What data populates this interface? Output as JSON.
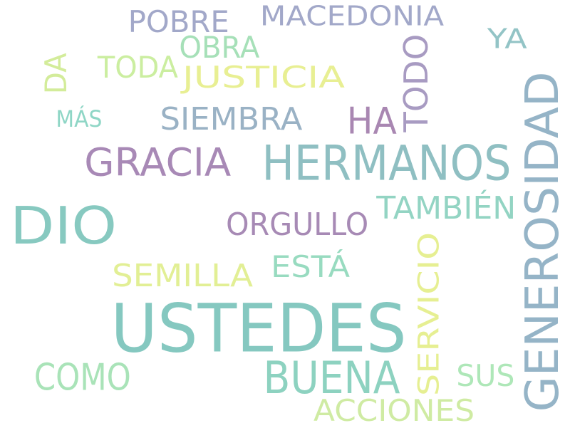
{
  "words": [
    {
      "id": "pobre",
      "text": "POBRE",
      "color": "#a2a8c9"
    },
    {
      "id": "macedonia",
      "text": "MACEDONIA",
      "color": "#a2a8c9"
    },
    {
      "id": "todo",
      "text": "TODO",
      "color": "#a89bc2"
    },
    {
      "id": "ya",
      "text": "YA",
      "color": "#93c4c6"
    },
    {
      "id": "obra",
      "text": "OBRA",
      "color": "#a6e0b8"
    },
    {
      "id": "da",
      "text": "DA",
      "color": "#d3ec9a"
    },
    {
      "id": "toda",
      "text": "TODA",
      "color": "#cbeea0"
    },
    {
      "id": "justicia",
      "text": "JUSTICIA",
      "color": "#e8ef93"
    },
    {
      "id": "generosidad",
      "text": "GENEROSIDAD",
      "color": "#95b4c7"
    },
    {
      "id": "mas",
      "text": "MÁS",
      "color": "#8fd6c6"
    },
    {
      "id": "siembra",
      "text": "SIEMBRA",
      "color": "#9ab2c5"
    },
    {
      "id": "ha",
      "text": "HA",
      "color": "#a987b2"
    },
    {
      "id": "gracia",
      "text": "GRACIA",
      "color": "#a889b6"
    },
    {
      "id": "hermanos",
      "text": "HERMANOS",
      "color": "#8fbfc2"
    },
    {
      "id": "dio",
      "text": "DIO",
      "color": "#87c9c0"
    },
    {
      "id": "tambien",
      "text": "TAMBIÉN",
      "color": "#93d4c3"
    },
    {
      "id": "orgullo",
      "text": "ORGULLO",
      "color": "#a78ab5"
    },
    {
      "id": "semilla",
      "text": "SEMILLA",
      "color": "#e2ef95"
    },
    {
      "id": "esta",
      "text": "ESTÁ",
      "color": "#98dbc0"
    },
    {
      "id": "servicio",
      "text": "SERVICIO",
      "color": "#e6ef92"
    },
    {
      "id": "ustedes",
      "text": "USTEDES",
      "color": "#85c8c0"
    },
    {
      "id": "como",
      "text": "COMO",
      "color": "#a9e3b8"
    },
    {
      "id": "buena",
      "text": "BUENA",
      "color": "#8dd2c0"
    },
    {
      "id": "sus",
      "text": "SUS",
      "color": "#aee7b8"
    },
    {
      "id": "acciones",
      "text": "ACCIONES",
      "color": "#cfeba3"
    }
  ]
}
